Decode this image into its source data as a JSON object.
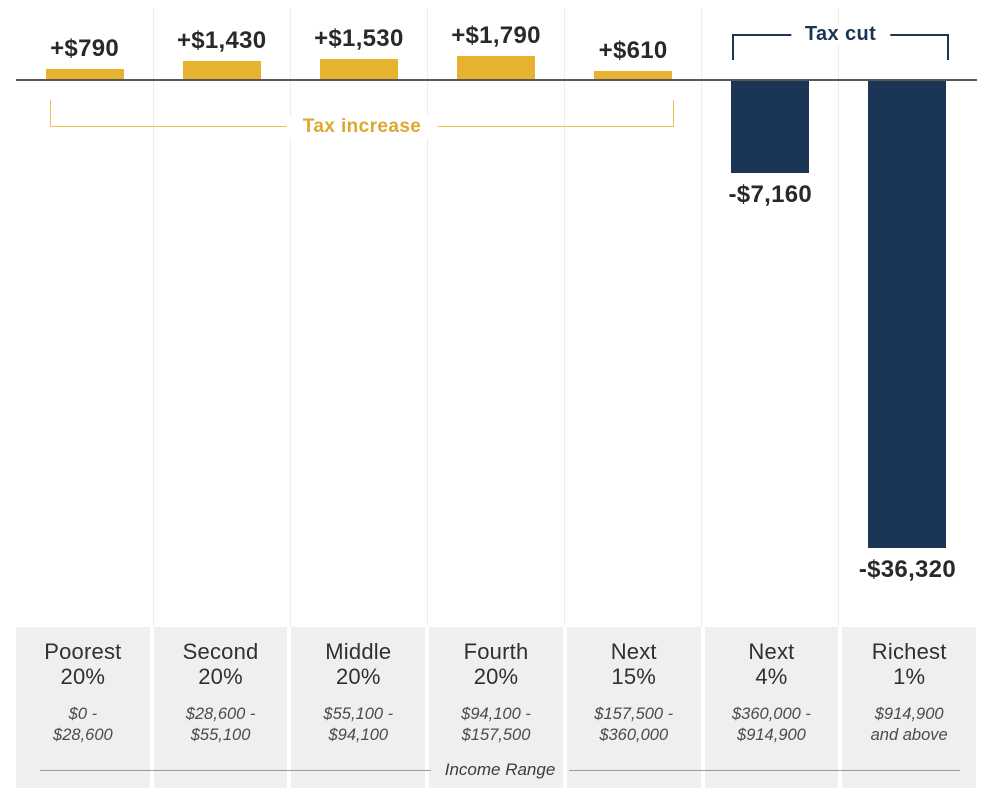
{
  "chart_data": {
    "type": "bar",
    "title": "",
    "xlabel": "Income Range",
    "categories": [
      "Poorest 20%",
      "Second 20%",
      "Middle 20%",
      "Fourth 20%",
      "Next 15%",
      "Next 4%",
      "Richest 1%"
    ],
    "income_ranges": [
      "$0 - $28,600",
      "$28,600 - $55,100",
      "$55,100 - $94,100",
      "$94,100 - $157,500",
      "$157,500 - $360,000",
      "$360,000 - $914,900",
      "$914,900 and above"
    ],
    "values": [
      790,
      1430,
      1530,
      1790,
      610,
      -7160,
      -36320
    ],
    "value_labels": [
      "+$790",
      "+$1,430",
      "+$1,530",
      "+$1,790",
      "+$610",
      "-$7,160",
      "-$36,320"
    ],
    "annotations": [
      {
        "label": "Tax increase",
        "covers": [
          "Poorest 20%",
          "Second 20%",
          "Middle 20%",
          "Fourth 20%",
          "Next 15%"
        ],
        "color": "#dfa72e"
      },
      {
        "label": "Tax cut",
        "covers": [
          "Next 4%",
          "Richest 1%"
        ],
        "color": "#1b3557"
      }
    ],
    "colors": {
      "positive_bar": "#e8b231",
      "negative_bar": "#1b3557"
    },
    "legend": "none",
    "grid": "light vertical column separators",
    "baseline": 0
  },
  "columns": [
    {
      "name_line1": "Poorest",
      "name_line2": "20%",
      "range_line1": "$0 -",
      "range_line2": "$28,600",
      "value_label": "+$790",
      "value": 790
    },
    {
      "name_line1": "Second",
      "name_line2": "20%",
      "range_line1": "$28,600 -",
      "range_line2": "$55,100",
      "value_label": "+$1,430",
      "value": 1430
    },
    {
      "name_line1": "Middle",
      "name_line2": "20%",
      "range_line1": "$55,100 -",
      "range_line2": "$94,100",
      "value_label": "+$1,530",
      "value": 1530
    },
    {
      "name_line1": "Fourth",
      "name_line2": "20%",
      "range_line1": "$94,100 -",
      "range_line2": "$157,500",
      "value_label": "+$1,790",
      "value": 1790
    },
    {
      "name_line1": "Next",
      "name_line2": "15%",
      "range_line1": "$157,500 -",
      "range_line2": "$360,000",
      "value_label": "+$610",
      "value": 610
    },
    {
      "name_line1": "Next",
      "name_line2": "4%",
      "range_line1": "$360,000 -",
      "range_line2": "$914,900",
      "value_label": "-$7,160",
      "value": -7160
    },
    {
      "name_line1": "Richest",
      "name_line2": "1%",
      "range_line1": "$914,900",
      "range_line2": "and above",
      "value_label": "-$36,320",
      "value": -36320
    }
  ],
  "brackets": {
    "tax_increase_label": "Tax increase",
    "tax_cut_label": "Tax cut"
  },
  "footer": {
    "income_range_label": "Income Range"
  }
}
